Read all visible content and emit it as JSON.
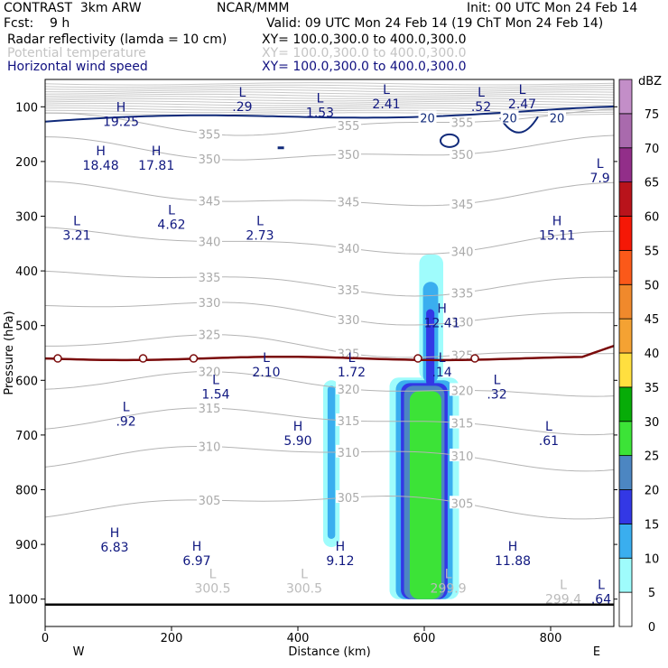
{
  "header": {
    "model": "CONTRAST  3km ARW",
    "org": "NCAR/MMM",
    "init": "Init: 00 UTC Mon 24 Feb 14",
    "fcst": "Fcst:    9 h",
    "valid": "Valid: 09 UTC Mon 24 Feb 14 (19 ChT Mon 24 Feb 14)",
    "fields": [
      {
        "name": "Radar reflectivity (lamda = 10 cm)",
        "xy": "XY= 100.0,300.0 to 400.0,300.0",
        "color": "#000000"
      },
      {
        "name": "Potential temperature",
        "xy": "XY= 100.0,300.0 to 400.0,300.0",
        "color": "#c4c4c4"
      },
      {
        "name": "Horizontal wind speed",
        "xy": "XY= 100.0,300.0 to 400.0,300.0",
        "color": "#101080"
      }
    ]
  },
  "chart_data": {
    "type": "heatmap",
    "xlabel": "Distance (km)",
    "ylabel": "Pressure (hPa)",
    "xlim": [
      0,
      900
    ],
    "ylim": [
      1050,
      50
    ],
    "x_ticks": [
      0,
      200,
      400,
      600,
      800
    ],
    "y_ticks": [
      100,
      200,
      300,
      400,
      500,
      600,
      700,
      800,
      900,
      1000
    ],
    "x_end_labels": {
      "left": "W",
      "right": "E"
    },
    "colorbar": {
      "unit": "dBZ",
      "levels": [
        0,
        5,
        10,
        15,
        20,
        25,
        30,
        35,
        40,
        45,
        50,
        55,
        60,
        65,
        70,
        75
      ],
      "colors": [
        "#ffffff",
        "#9ffcfc",
        "#3aaeef",
        "#3338e5",
        "#4c86c2",
        "#3ce337",
        "#07ac08",
        "#ffdf3f",
        "#f4a233",
        "#f0892c",
        "#fb5919",
        "#f51806",
        "#b9131b",
        "#922e89",
        "#a96aad",
        "#c38ec8"
      ]
    },
    "reflectivity_cells": [
      {
        "x_range": [
          440,
          465
        ],
        "p_top": 600,
        "p_bottom": 905,
        "max_dbz": 10
      },
      {
        "x_range": [
          545,
          655
        ],
        "p_top": 370,
        "p_bottom": 1000,
        "max_dbz": 30
      }
    ],
    "theta_contours": [
      355,
      350,
      345,
      340,
      335,
      330,
      325,
      320,
      315,
      310,
      305
    ],
    "wind_contours": [
      0,
      20
    ],
    "labels": [
      {
        "kind": "H",
        "value": "19.25",
        "x": 120,
        "p": 112,
        "field": "wind"
      },
      {
        "kind": "L",
        "value": ".29",
        "x": 312,
        "p": 85,
        "field": "wind"
      },
      {
        "kind": "L",
        "value": "1.53",
        "x": 435,
        "p": 95,
        "field": "wind"
      },
      {
        "kind": "L",
        "value": "2.41",
        "x": 540,
        "p": 80,
        "field": "wind"
      },
      {
        "kind": "L",
        "value": ".52",
        "x": 690,
        "p": 85,
        "field": "wind"
      },
      {
        "kind": "L",
        "value": "2.47",
        "x": 755,
        "p": 80,
        "field": "wind"
      },
      {
        "kind": "H",
        "value": "18.48",
        "x": 88,
        "p": 192,
        "field": "wind"
      },
      {
        "kind": "H",
        "value": "17.81",
        "x": 176,
        "p": 192,
        "field": "wind"
      },
      {
        "kind": "L",
        "value": "7.9",
        "x": 878,
        "p": 215,
        "field": "wind"
      },
      {
        "kind": "L",
        "value": "3.21",
        "x": 50,
        "p": 320,
        "field": "wind"
      },
      {
        "kind": "L",
        "value": "4.62",
        "x": 200,
        "p": 300,
        "field": "wind"
      },
      {
        "kind": "L",
        "value": "2.73",
        "x": 340,
        "p": 320,
        "field": "wind"
      },
      {
        "kind": "H",
        "value": "15.11",
        "x": 810,
        "p": 320,
        "field": "wind"
      },
      {
        "kind": "H",
        "value": "12.41",
        "x": 628,
        "p": 480,
        "field": "wind"
      },
      {
        "kind": "L",
        "value": "2.10",
        "x": 350,
        "p": 570,
        "field": "wind"
      },
      {
        "kind": "L",
        "value": "1.72",
        "x": 485,
        "p": 570,
        "field": "wind"
      },
      {
        "kind": "L",
        "value": ".14",
        "x": 628,
        "p": 570,
        "field": "wind"
      },
      {
        "kind": "L",
        "value": "1.54",
        "x": 270,
        "p": 610,
        "field": "wind"
      },
      {
        "kind": "L",
        "value": ".32",
        "x": 715,
        "p": 610,
        "field": "wind"
      },
      {
        "kind": "L",
        "value": ".92",
        "x": 128,
        "p": 660,
        "field": "wind"
      },
      {
        "kind": "H",
        "value": "5.90",
        "x": 400,
        "p": 695,
        "field": "wind"
      },
      {
        "kind": "L",
        "value": ".61",
        "x": 797,
        "p": 695,
        "field": "wind"
      },
      {
        "kind": "H",
        "value": "6.83",
        "x": 110,
        "p": 890,
        "field": "wind"
      },
      {
        "kind": "H",
        "value": "6.97",
        "x": 240,
        "p": 915,
        "field": "wind"
      },
      {
        "kind": "H",
        "value": "9.12",
        "x": 467,
        "p": 915,
        "field": "wind"
      },
      {
        "kind": "H",
        "value": "11.88",
        "x": 740,
        "p": 915,
        "field": "wind"
      },
      {
        "kind": "L",
        "value": "300.5",
        "x": 265,
        "p": 965,
        "field": "theta"
      },
      {
        "kind": "L",
        "value": "300.5",
        "x": 410,
        "p": 965,
        "field": "theta"
      },
      {
        "kind": "L",
        "value": "299.9",
        "x": 638,
        "p": 965,
        "field": "theta"
      },
      {
        "kind": "L",
        "value": "299.4",
        "x": 820,
        "p": 985,
        "field": "theta"
      },
      {
        "kind": "L",
        "value": ".64",
        "x": 880,
        "p": 985,
        "field": "wind"
      }
    ]
  }
}
